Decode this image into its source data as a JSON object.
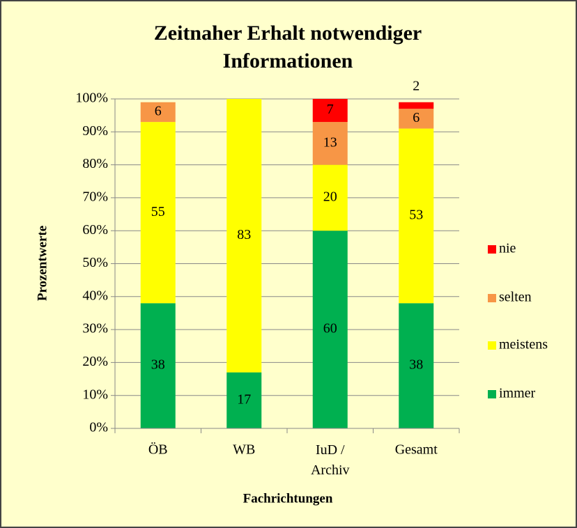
{
  "chart_data": {
    "type": "bar",
    "stacked": true,
    "title": "Zeitnaher Erhalt notwendiger Informationen",
    "x_label": "Fachrichtungen",
    "y_label": "Prozentwerte",
    "categories": [
      "ÖB",
      "WB",
      "IuD / Archiv",
      "Gesamt"
    ],
    "series": [
      {
        "name": "immer",
        "color": "#00b050",
        "values": [
          38,
          17,
          60,
          38
        ]
      },
      {
        "name": "meistens",
        "color": "#ffff00",
        "values": [
          55,
          83,
          20,
          53
        ]
      },
      {
        "name": "selten",
        "color": "#f79646",
        "values": [
          6,
          null,
          13,
          6
        ]
      },
      {
        "name": "nie",
        "color": "#ff0000",
        "values": [
          null,
          null,
          7,
          2
        ]
      }
    ],
    "ylim": [
      0,
      100
    ],
    "yticks": [
      {
        "value": 0,
        "label": "0%"
      },
      {
        "value": 10,
        "label": "10%"
      },
      {
        "value": 20,
        "label": "20%"
      },
      {
        "value": 30,
        "label": "30%"
      },
      {
        "value": 40,
        "label": "40%"
      },
      {
        "value": 50,
        "label": "50%"
      },
      {
        "value": 60,
        "label": "60%"
      },
      {
        "value": 70,
        "label": "70%"
      },
      {
        "value": 80,
        "label": "80%"
      },
      {
        "value": 90,
        "label": "90%"
      },
      {
        "value": 100,
        "label": "100%"
      }
    ],
    "grid": true,
    "legend": "right"
  }
}
